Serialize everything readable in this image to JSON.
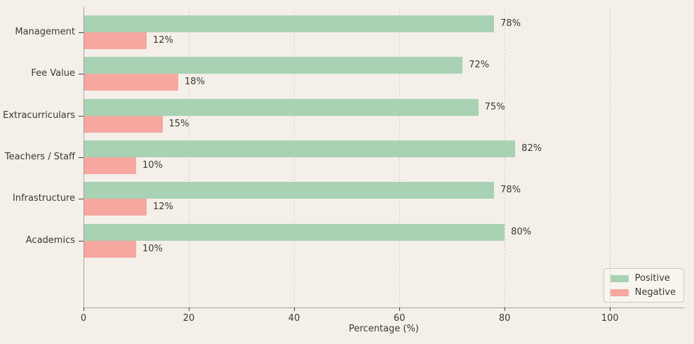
{
  "chart_data": {
    "type": "bar",
    "orientation": "horizontal",
    "title": "",
    "categories": [
      "Management",
      "Fee Value",
      "Extracurriculars",
      "Teachers / Staff",
      "Infrastructure",
      "Academics"
    ],
    "series": [
      {
        "name": "Positive",
        "color": "#a8d2b3",
        "values": [
          78,
          72,
          75,
          82,
          78,
          80
        ],
        "data_labels": [
          "78%",
          "72%",
          "75%",
          "82%",
          "78%",
          "80%"
        ]
      },
      {
        "name": "Negative",
        "color": "#f5a7a0",
        "values": [
          12,
          18,
          15,
          10,
          12,
          10
        ],
        "data_labels": [
          "12%",
          "18%",
          "15%",
          "10%",
          "12%",
          "10%"
        ]
      }
    ],
    "xlabel": "Percentage (%)",
    "ylabel": "",
    "x_ticks": [
      0,
      20,
      40,
      60,
      80,
      100
    ],
    "x_tick_labels": [
      "0",
      "20",
      "40",
      "60",
      "80",
      "100"
    ],
    "xlim": [
      0,
      114.1
    ],
    "grid": true,
    "grid_style": "dashed-vertical",
    "legend_position": "lower right",
    "colors": {
      "background": "#f4efe9",
      "grid": "#d9d4cd",
      "spine": "#a9a39c",
      "tick": "#45423d",
      "text": "#3b3833",
      "legend_background": "#f8f4ee",
      "legend_border": "#ccc8c1"
    }
  }
}
